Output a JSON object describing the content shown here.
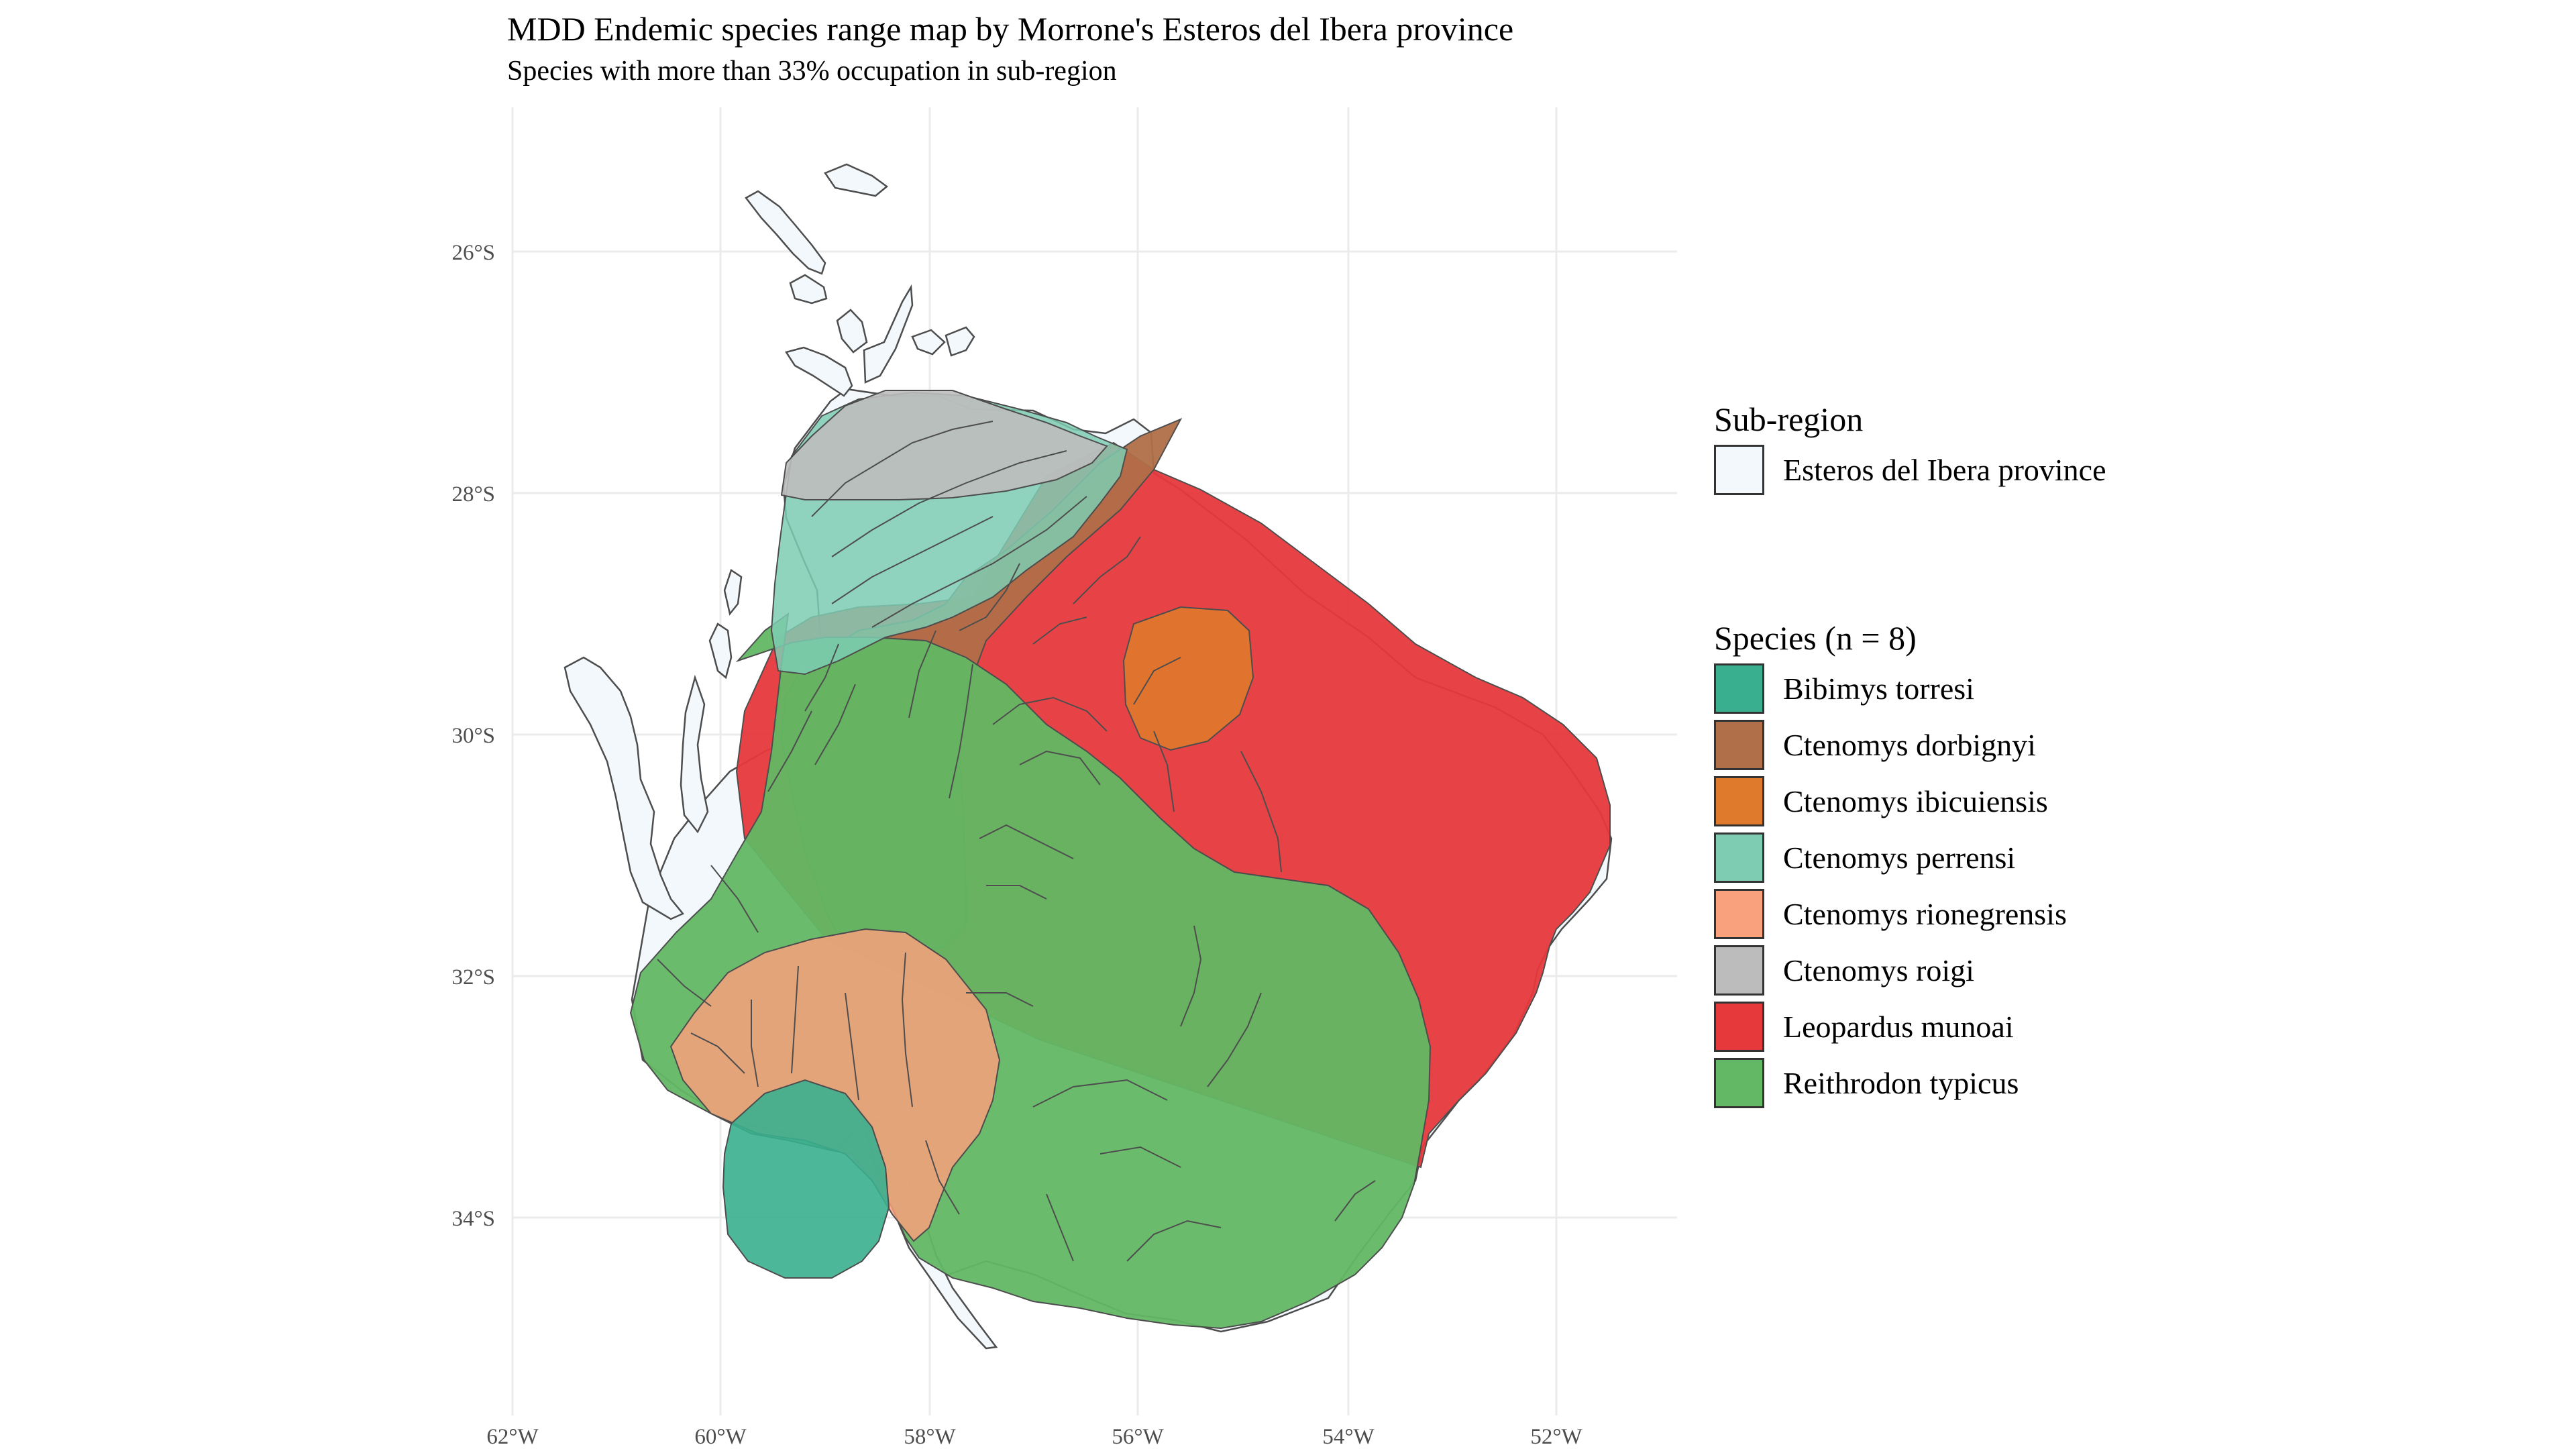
{
  "title": "MDD Endemic species range map by Morrone's Esteros del Ibera province",
  "subtitle": "Species with more than 33% occupation in sub-region",
  "x_axis": {
    "ticks": [
      "62°W",
      "60°W",
      "58°W",
      "56°W",
      "54°W",
      "52°W"
    ]
  },
  "y_axis": {
    "ticks": [
      "26°S",
      "28°S",
      "30°S",
      "32°S",
      "34°S"
    ]
  },
  "map_data": {
    "type": "map",
    "lon_range": [
      -62,
      -52
    ],
    "lat_range": [
      -26,
      -34
    ],
    "grid": true,
    "legend_position": "right"
  },
  "legend_subregion": {
    "title": "Sub-region",
    "items": [
      {
        "label": "Esteros del Ibera province",
        "color": "#f2f8fb"
      }
    ]
  },
  "legend_species": {
    "title": "Species (n = 8)",
    "items": [
      {
        "label": "Bibimys torresi",
        "color": "#3aaf8f"
      },
      {
        "label": "Ctenomys dorbignyi",
        "color": "#b06f48"
      },
      {
        "label": "Ctenomys ibicuiensis",
        "color": "#df7a2c"
      },
      {
        "label": "Ctenomys perrensi",
        "color": "#7ecdb3"
      },
      {
        "label": "Ctenomys rionegrensis",
        "color": "#f9a07c"
      },
      {
        "label": "Ctenomys roigi",
        "color": "#bcbcbc"
      },
      {
        "label": "Leopardus munoai",
        "color": "#e6393c"
      },
      {
        "label": "Reithrodon typicus",
        "color": "#62b864"
      }
    ]
  }
}
